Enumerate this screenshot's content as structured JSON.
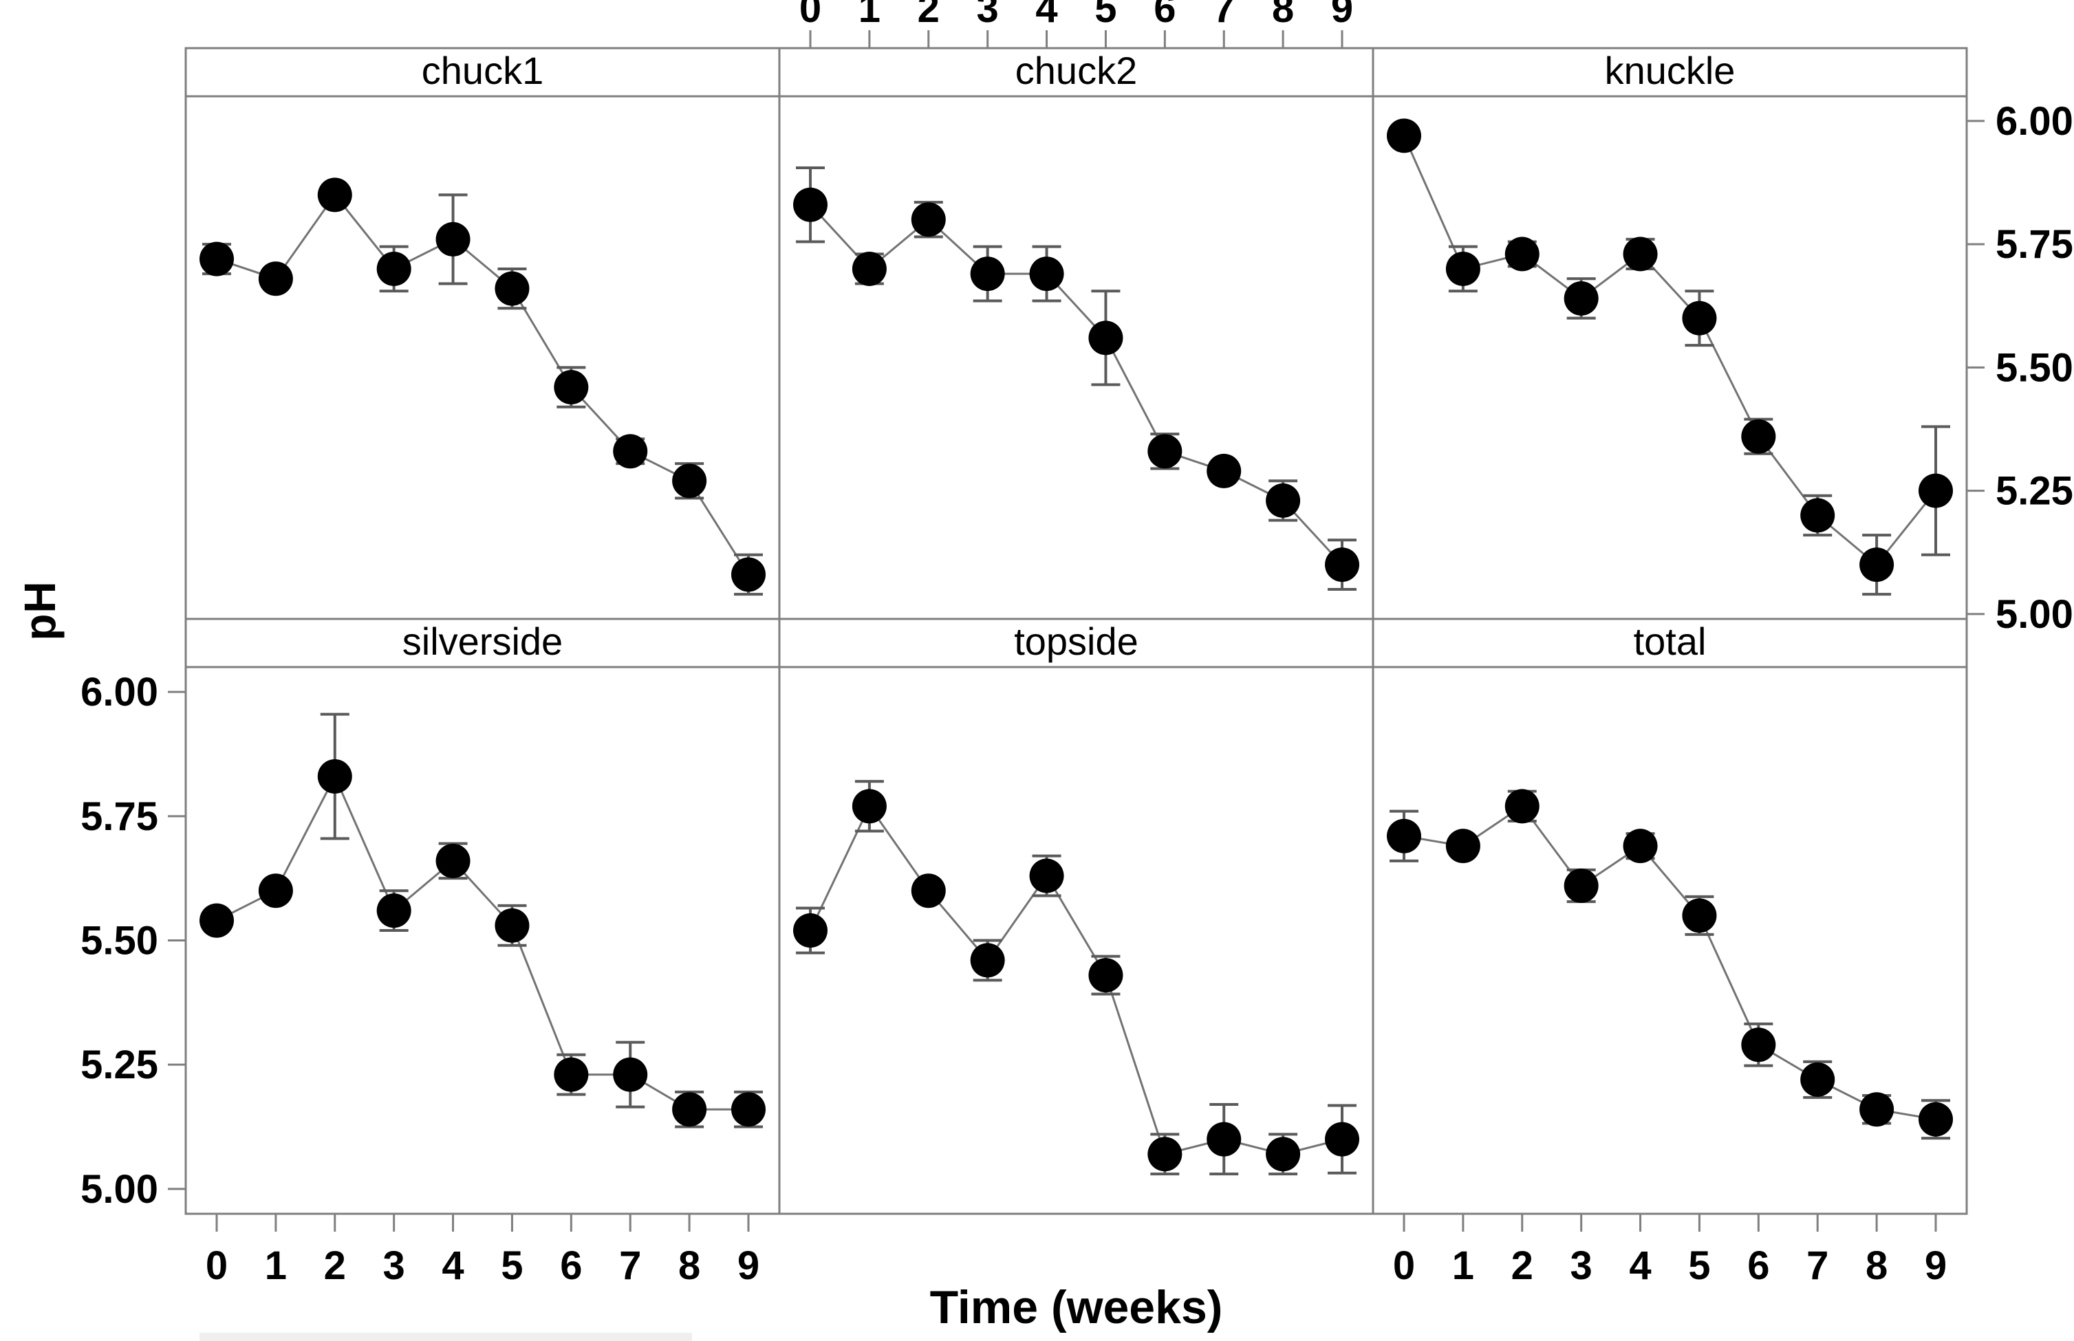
{
  "figure": {
    "background": "#ffffff",
    "description": "Two-row by three-column lattice of mean pH over storage time for beef cuts, points with error bars"
  },
  "chart_data": {
    "type": "line",
    "title": "",
    "xlabel": "Time (weeks)",
    "ylabel": "pH",
    "x": [
      0,
      1,
      2,
      3,
      4,
      5,
      6,
      7,
      8,
      9
    ],
    "x_tick_labels": [
      "0",
      "1",
      "2",
      "3",
      "4",
      "5",
      "6",
      "7",
      "8",
      "9"
    ],
    "y_ticks": [
      6.0,
      5.75,
      5.5,
      5.25,
      5.0
    ],
    "y_tick_labels": [
      "6.00",
      "5.75",
      "5.50",
      "5.25",
      "5.00"
    ],
    "ylim": [
      4.95,
      6.05
    ],
    "grid": "off",
    "legend": "none",
    "marker": "filled-circle",
    "error_bars": "vertical with caps",
    "panel_grid": {
      "rows": 2,
      "cols": 3
    },
    "axis_layout": {
      "x_labels_top": [
        "chuck2"
      ],
      "x_labels_bottom": [
        "silverside",
        "total"
      ],
      "y_labels_left": [
        "silverside"
      ],
      "y_labels_right": [
        "knuckle"
      ]
    },
    "panels": [
      {
        "name": "chuck1",
        "row": 0,
        "col": 0,
        "values": [
          5.72,
          5.68,
          5.85,
          5.7,
          5.76,
          5.66,
          5.46,
          5.33,
          5.27,
          5.08
        ],
        "errors": [
          0.03,
          0.01,
          0.015,
          0.045,
          0.09,
          0.04,
          0.04,
          0.025,
          0.035,
          0.04
        ]
      },
      {
        "name": "chuck2",
        "row": 0,
        "col": 1,
        "values": [
          5.83,
          5.7,
          5.8,
          5.69,
          5.69,
          5.56,
          5.33,
          5.29,
          5.23,
          5.1
        ],
        "errors": [
          0.075,
          0.03,
          0.035,
          0.055,
          0.055,
          0.095,
          0.035,
          0.015,
          0.04,
          0.05
        ]
      },
      {
        "name": "knuckle",
        "row": 0,
        "col": 2,
        "values": [
          5.97,
          5.7,
          5.73,
          5.64,
          5.73,
          5.6,
          5.36,
          5.2,
          5.1,
          5.25
        ],
        "errors": [
          0.012,
          0.045,
          0.025,
          0.04,
          0.03,
          0.055,
          0.035,
          0.04,
          0.06,
          0.13
        ]
      },
      {
        "name": "silverside",
        "row": 1,
        "col": 0,
        "values": [
          5.54,
          5.6,
          5.83,
          5.56,
          5.66,
          5.53,
          5.23,
          5.23,
          5.16,
          5.16
        ],
        "errors": [
          0.015,
          0.015,
          0.125,
          0.04,
          0.035,
          0.04,
          0.04,
          0.065,
          0.035,
          0.035
        ]
      },
      {
        "name": "topside",
        "row": 1,
        "col": 1,
        "values": [
          5.52,
          5.77,
          5.6,
          5.46,
          5.63,
          5.43,
          5.07,
          5.1,
          5.07,
          5.1
        ],
        "errors": [
          0.045,
          0.05,
          0.015,
          0.04,
          0.04,
          0.038,
          0.04,
          0.07,
          0.04,
          0.068
        ]
      },
      {
        "name": "total",
        "row": 1,
        "col": 2,
        "values": [
          5.71,
          5.69,
          5.77,
          5.61,
          5.69,
          5.55,
          5.29,
          5.22,
          5.16,
          5.14
        ],
        "errors": [
          0.05,
          0.015,
          0.03,
          0.032,
          0.025,
          0.038,
          0.042,
          0.036,
          0.028,
          0.038
        ]
      }
    ]
  },
  "colors": {
    "marker": "#000000",
    "line": "#737373",
    "error_bar": "#5a5a5a",
    "panel_border": "#7f7f7f",
    "text": "#000000",
    "artifact": "#efefef"
  },
  "artifact": {
    "note": "faint light-gray horizontal bar partially visible at bottom-left edge of image"
  }
}
